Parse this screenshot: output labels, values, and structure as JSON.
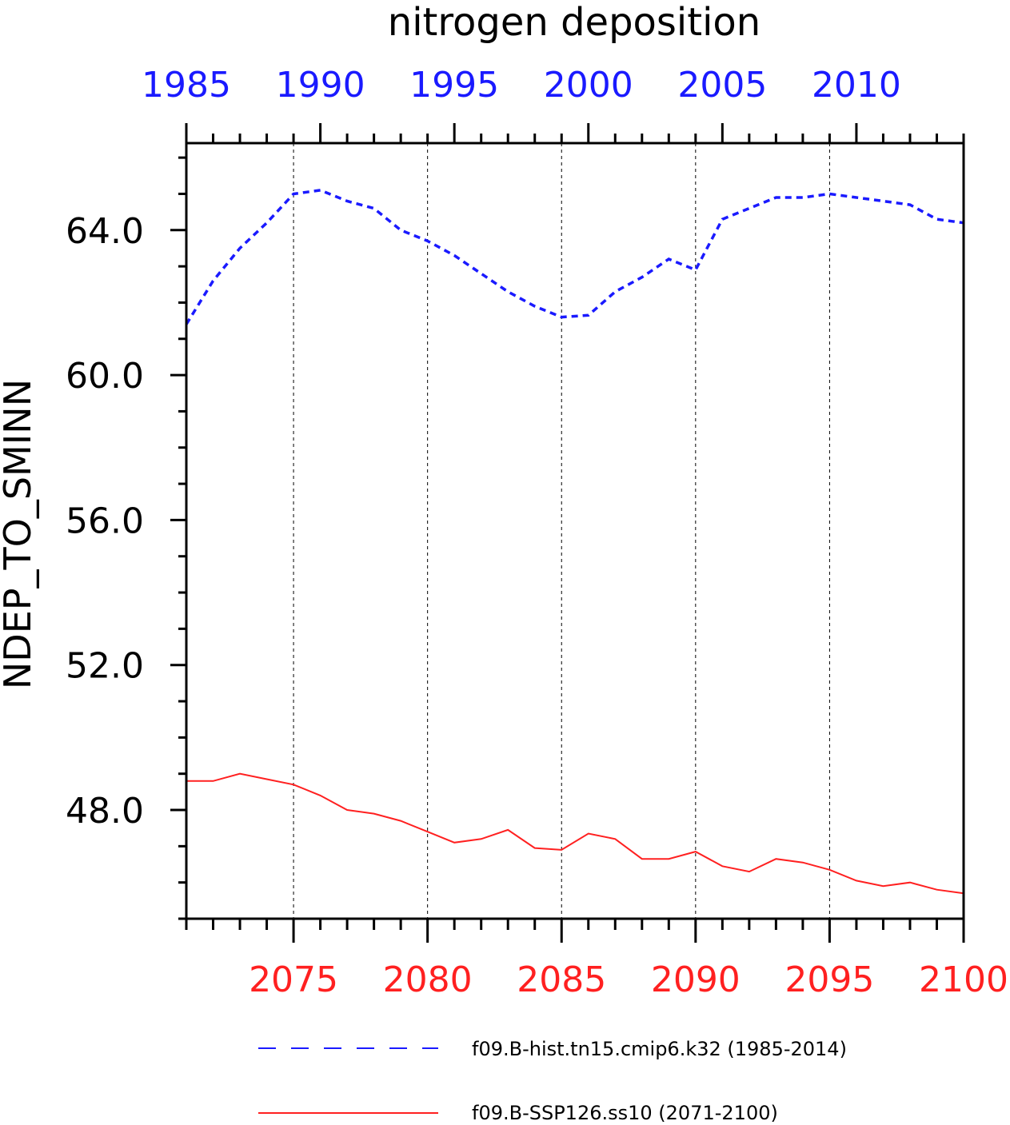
{
  "chart_data": {
    "type": "line",
    "title": "nitrogen deposition",
    "ylabel": "NDEP_TO_SMINN",
    "xlabel": "",
    "ylim": [
      45.0,
      66.4
    ],
    "y_ticks": [
      48,
      52,
      56,
      60,
      64
    ],
    "y_tick_labels": [
      "48.0",
      "52.0",
      "56.0",
      "60.0",
      "64.0"
    ],
    "grid": "dashed vertical lines at major bottom-axis ticks",
    "top_axis": {
      "color": "#1a1aff",
      "range": [
        1985,
        2014
      ],
      "ticks": [
        1985,
        1990,
        1995,
        2000,
        2005,
        2010
      ],
      "tick_labels": [
        "1985",
        "1990",
        "1995",
        "2000",
        "2005",
        "2010"
      ]
    },
    "bottom_axis": {
      "color": "#ff2020",
      "range": [
        2071,
        2100
      ],
      "ticks": [
        2075,
        2080,
        2085,
        2090,
        2095,
        2100
      ],
      "tick_labels": [
        "2075",
        "2080",
        "2085",
        "2090",
        "2095",
        "2100"
      ]
    },
    "series": [
      {
        "name": "f09.B-hist.tn15.cmip6.k32 (1985-2014)",
        "color": "#1a1aff",
        "style": "dashed",
        "axis": "top",
        "x": [
          1985,
          1986,
          1987,
          1988,
          1989,
          1990,
          1991,
          1992,
          1993,
          1994,
          1995,
          1996,
          1997,
          1998,
          1999,
          2000,
          2001,
          2002,
          2003,
          2004,
          2005,
          2006,
          2007,
          2008,
          2009,
          2010,
          2011,
          2012,
          2013,
          2014
        ],
        "y": [
          61.4,
          62.6,
          63.5,
          64.2,
          65.0,
          65.1,
          64.8,
          64.6,
          64.0,
          63.7,
          63.3,
          62.8,
          62.3,
          61.9,
          61.6,
          61.65,
          62.3,
          62.7,
          63.2,
          62.9,
          64.3,
          64.6,
          64.9,
          64.9,
          65.0,
          64.9,
          64.8,
          64.7,
          64.3,
          64.2
        ]
      },
      {
        "name": "f09.B-SSP126.ss10 (2071-2100)",
        "color": "#ff2020",
        "style": "solid",
        "axis": "bottom",
        "x": [
          2071,
          2072,
          2073,
          2074,
          2075,
          2076,
          2077,
          2078,
          2079,
          2080,
          2081,
          2082,
          2083,
          2084,
          2085,
          2086,
          2087,
          2088,
          2089,
          2090,
          2091,
          2092,
          2093,
          2094,
          2095,
          2096,
          2097,
          2098,
          2099,
          2100
        ],
        "y": [
          48.8,
          48.8,
          49.0,
          48.85,
          48.7,
          48.4,
          48.0,
          47.9,
          47.7,
          47.4,
          47.1,
          47.2,
          47.45,
          46.95,
          46.9,
          47.35,
          47.2,
          46.65,
          46.65,
          46.85,
          46.45,
          46.3,
          46.65,
          46.55,
          46.35,
          46.05,
          45.9,
          46.0,
          45.8,
          45.7
        ]
      }
    ]
  }
}
